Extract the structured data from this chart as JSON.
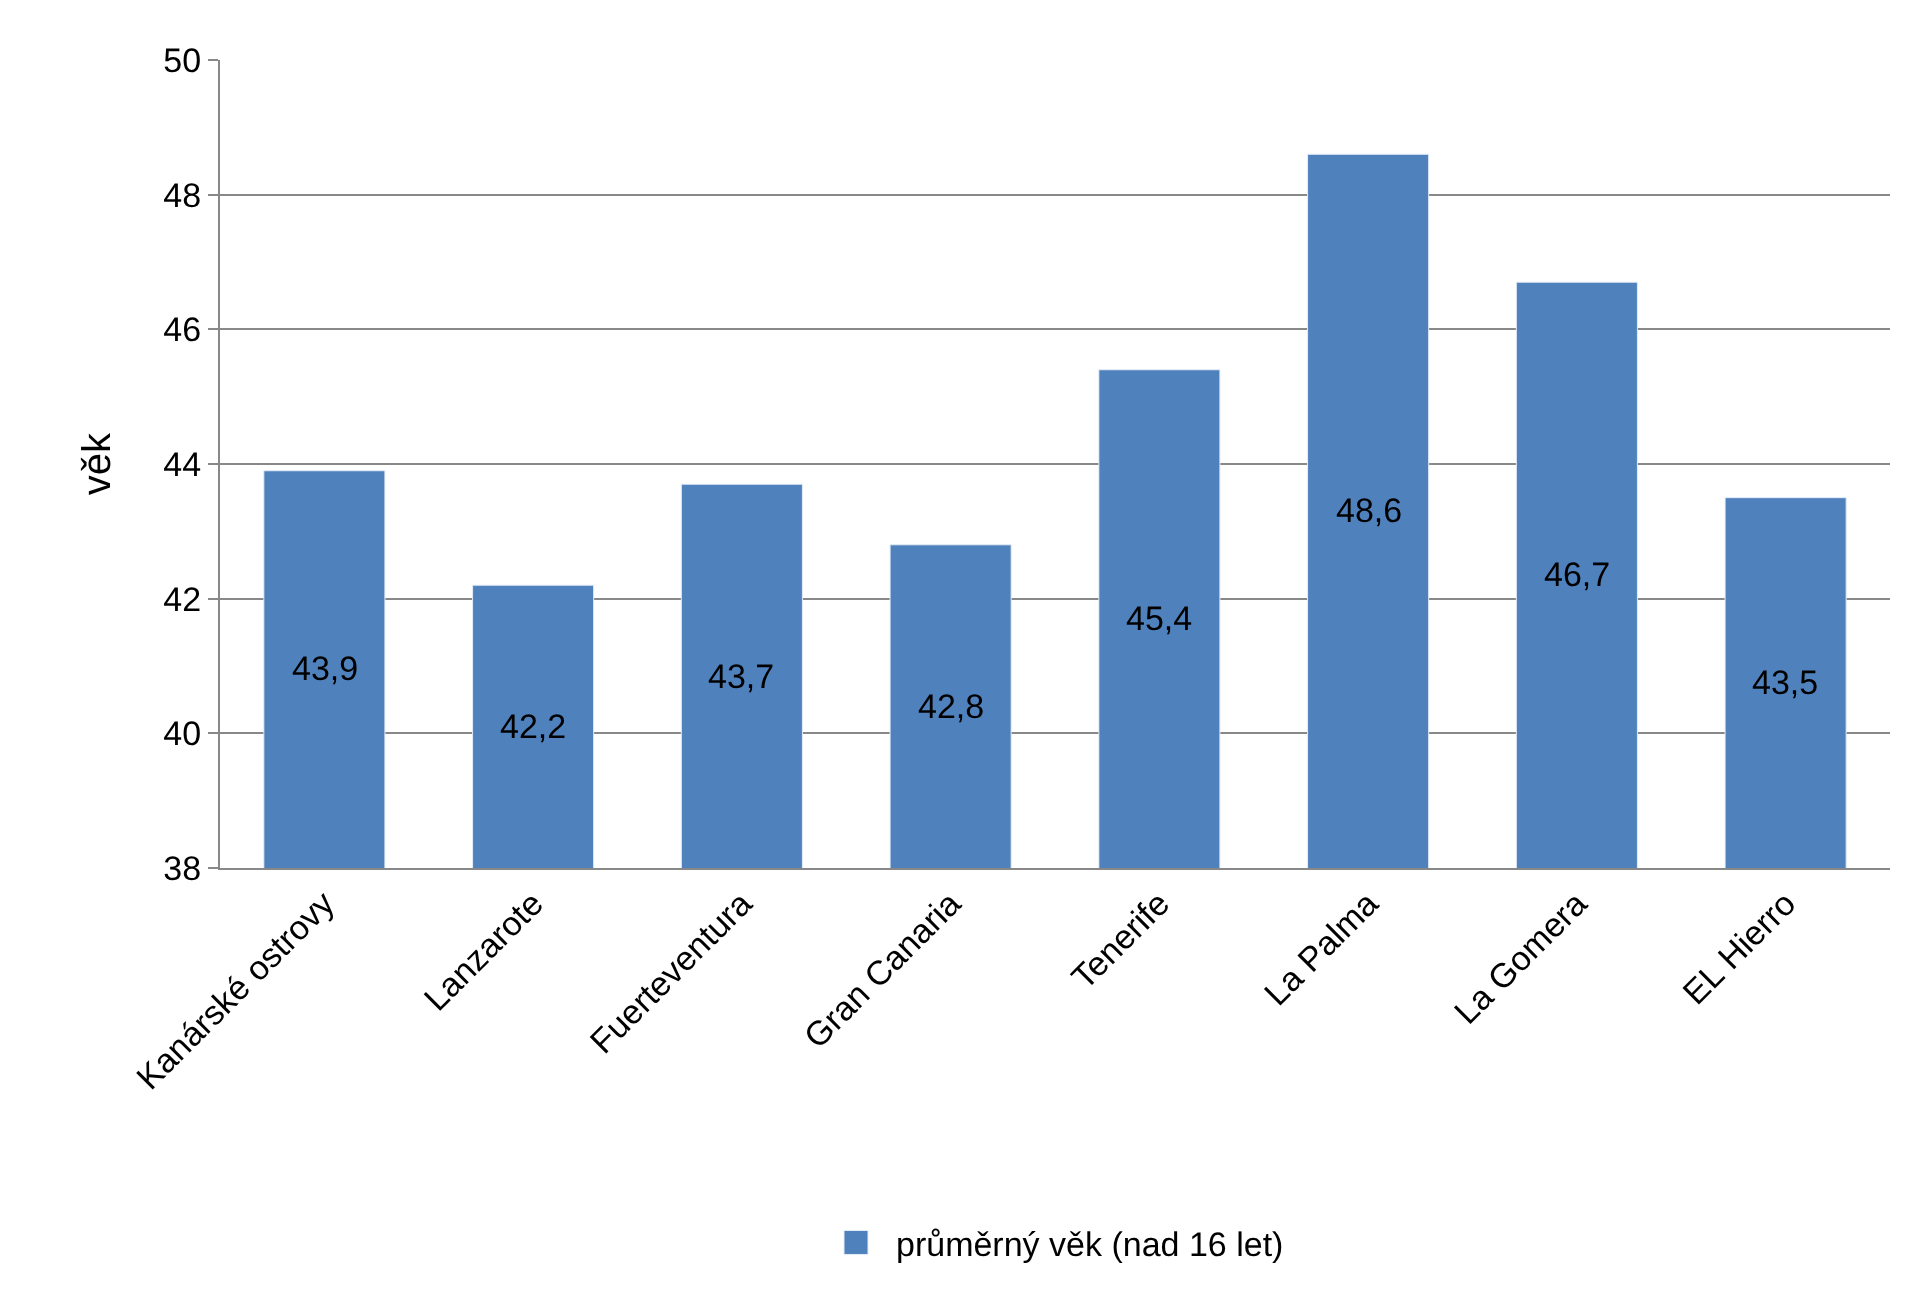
{
  "chart_data": {
    "type": "bar",
    "ylabel": "věk",
    "categories": [
      "Kanárské ostrovy",
      "Lanzarote",
      "Fuerteventura",
      "Gran Canaria",
      "Tenerife",
      "La Palma",
      "La Gomera",
      "EL Hierro"
    ],
    "series": [
      {
        "name": "průměrný věk (nad 16 let)",
        "color": "#4f81bd",
        "values": [
          43.9,
          42.2,
          43.7,
          42.8,
          45.4,
          48.6,
          46.7,
          43.5
        ],
        "value_labels": [
          "43,9",
          "42,2",
          "43,7",
          "42,8",
          "45,4",
          "48,6",
          "46,7",
          "43,5"
        ]
      }
    ],
    "ylim": [
      38,
      50
    ],
    "yticks": [
      38,
      40,
      42,
      44,
      46,
      48,
      50
    ],
    "grid": "y",
    "legend": "bottom"
  }
}
